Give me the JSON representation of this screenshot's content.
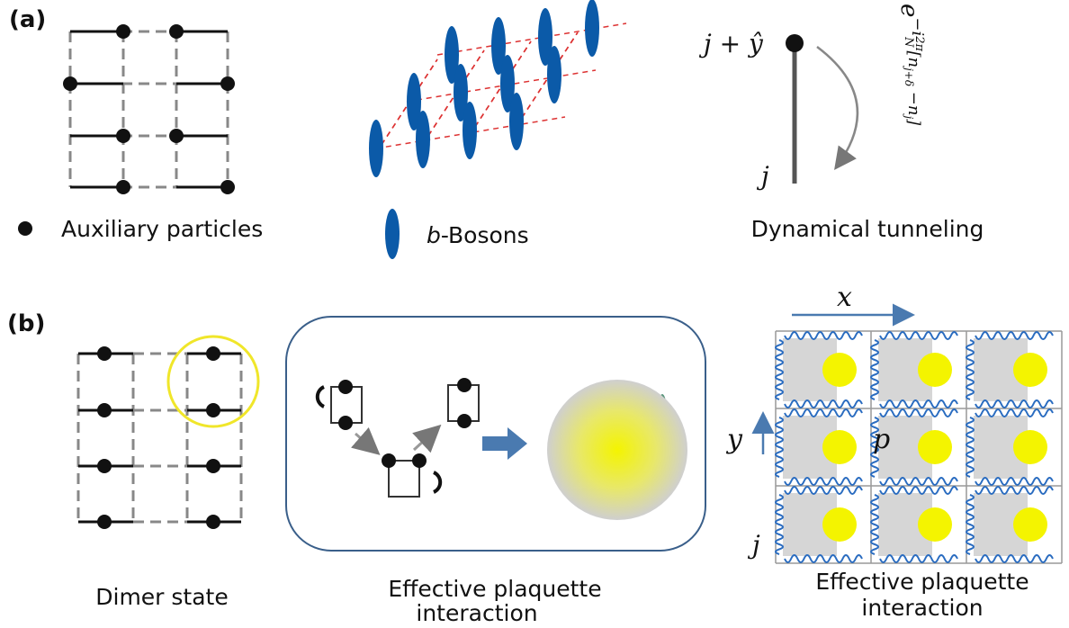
{
  "panel_a": {
    "label": "(a)",
    "legend_auxiliary": "Auxiliary particles",
    "legend_bosons_symbol": "b",
    "legend_bosons": "-Bosons",
    "site_upper": "j + ŷ",
    "site_lower": "j",
    "phase_base": "e",
    "phase_i": "−i",
    "phase_num": "2π",
    "phase_den": "N",
    "phase_bracket": "[n",
    "phase_sub1": "j+δ",
    "phase_mid": " −n",
    "phase_sub2": "j",
    "phase_close": "]",
    "tunneling_caption": "Dynamical tunneling"
  },
  "panel_b": {
    "label": "(b)",
    "dimer_caption": "Dimer state",
    "plaquette_caption": [
      "Effective plaquette",
      "interaction"
    ],
    "axis_x": "x",
    "axis_y": "y",
    "plaquette_label": "p",
    "site_label": "j",
    "lattice_caption": [
      "Effective plaquette",
      "interaction"
    ]
  }
}
